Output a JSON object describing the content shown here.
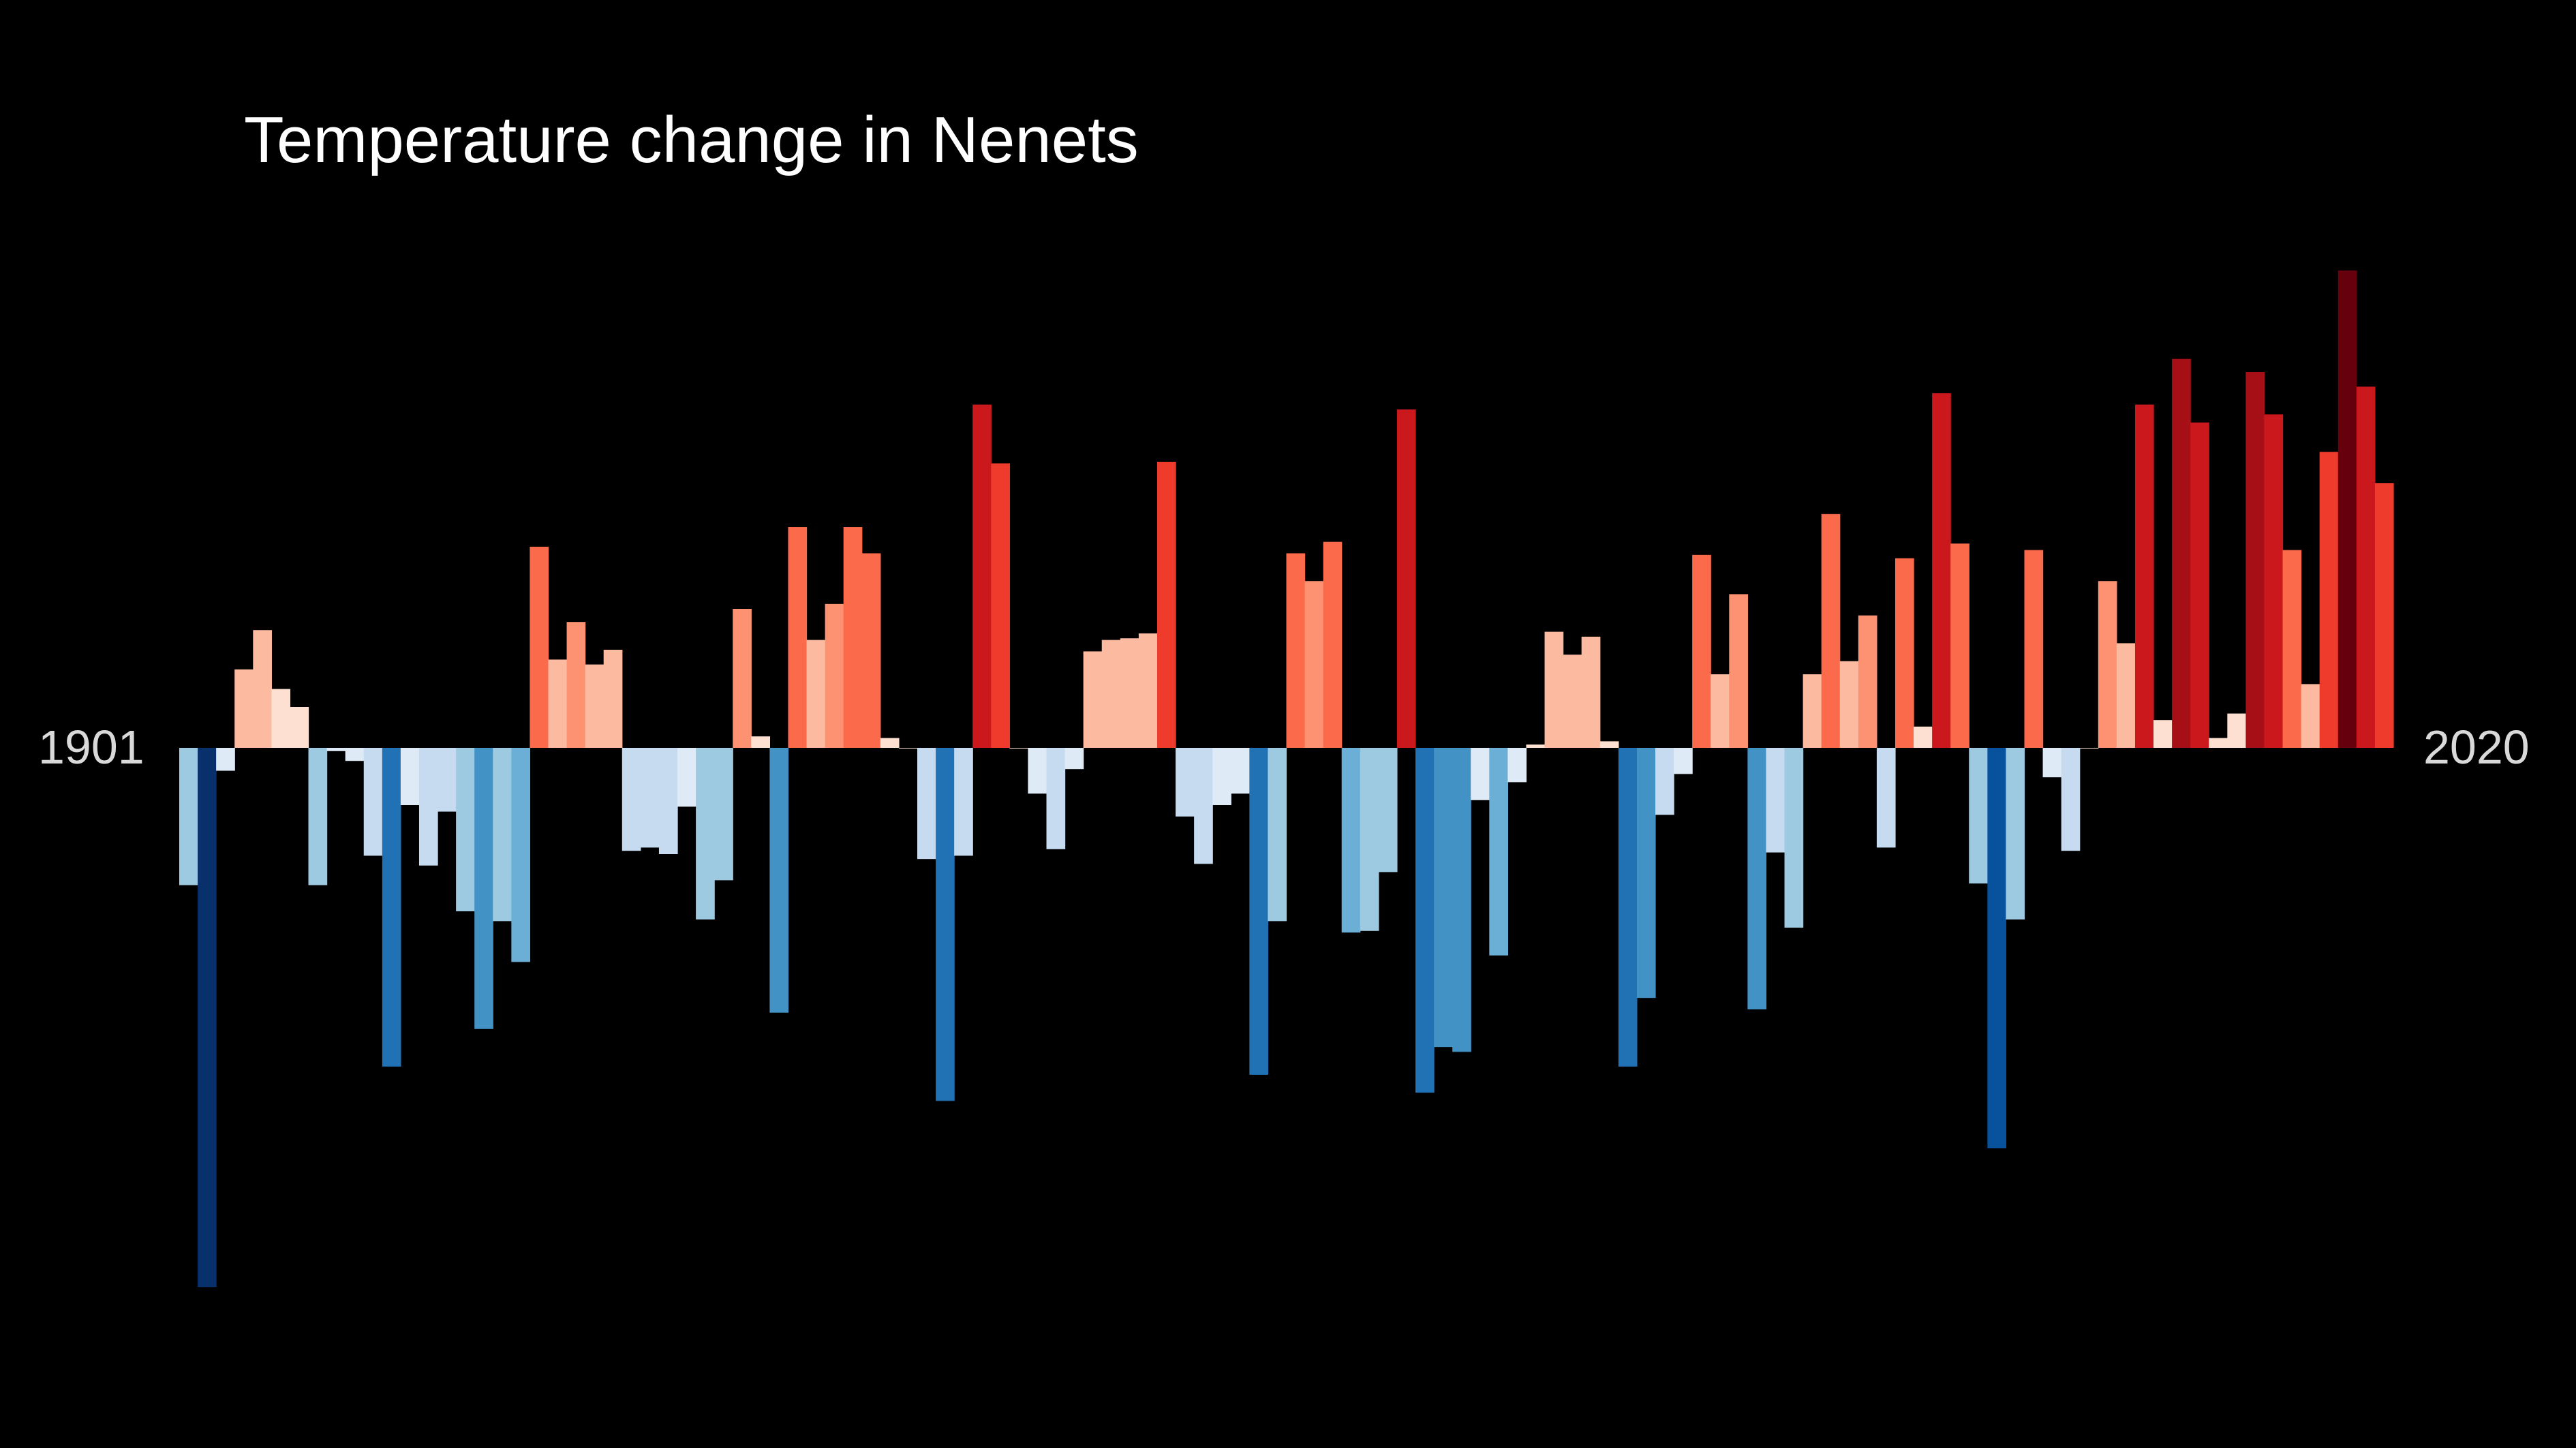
{
  "title": "Temperature change in Nenets",
  "start_label": "1901",
  "end_label": "2020",
  "chart_data": {
    "type": "bar",
    "title": "Temperature change in Nenets",
    "x": [
      1901,
      1902,
      1903,
      1904,
      1905,
      1906,
      1907,
      1908,
      1909,
      1910,
      1911,
      1912,
      1913,
      1914,
      1915,
      1916,
      1917,
      1918,
      1919,
      1920,
      1921,
      1922,
      1923,
      1924,
      1925,
      1926,
      1927,
      1928,
      1929,
      1930,
      1931,
      1932,
      1933,
      1934,
      1935,
      1936,
      1937,
      1938,
      1939,
      1940,
      1941,
      1942,
      1943,
      1944,
      1945,
      1946,
      1947,
      1948,
      1949,
      1950,
      1951,
      1952,
      1953,
      1954,
      1955,
      1956,
      1957,
      1958,
      1959,
      1960,
      1961,
      1962,
      1963,
      1964,
      1965,
      1966,
      1967,
      1968,
      1969,
      1970,
      1971,
      1972,
      1973,
      1974,
      1975,
      1976,
      1977,
      1978,
      1979,
      1980,
      1981,
      1982,
      1983,
      1984,
      1985,
      1986,
      1987,
      1988,
      1989,
      1990,
      1991,
      1992,
      1993,
      1994,
      1995,
      1996,
      1997,
      1998,
      1999,
      2000,
      2001,
      2002,
      2003,
      2004,
      2005,
      2006,
      2007,
      2008,
      2009,
      2010,
      2011,
      2012,
      2013,
      2014,
      2015,
      2016,
      2017,
      2018,
      2019,
      2020
    ],
    "values": [
      -0.84,
      -3.3,
      -0.14,
      0.48,
      0.72,
      0.36,
      0.25,
      -0.84,
      -0.02,
      -0.08,
      -0.66,
      -1.95,
      -0.35,
      -0.72,
      -0.39,
      -1.0,
      -1.72,
      -1.06,
      -1.31,
      1.23,
      0.54,
      0.77,
      0.51,
      0.6,
      -0.63,
      -0.61,
      -0.65,
      -0.36,
      -1.05,
      -0.81,
      0.85,
      0.07,
      -1.62,
      1.35,
      0.66,
      0.88,
      1.35,
      1.19,
      0.06,
      0.0,
      -0.68,
      -2.16,
      -0.66,
      2.1,
      1.74,
      0.0,
      -0.28,
      -0.62,
      -0.13,
      0.59,
      0.66,
      0.67,
      0.7,
      1.75,
      -0.42,
      -0.71,
      -0.35,
      -0.28,
      -2.0,
      -1.06,
      1.19,
      1.02,
      1.26,
      -1.13,
      -1.12,
      -0.76,
      2.07,
      -2.11,
      -1.83,
      -1.86,
      -0.32,
      -1.27,
      -0.21,
      0.02,
      0.71,
      0.57,
      0.68,
      0.04,
      -1.95,
      -1.53,
      -0.41,
      -0.16,
      1.18,
      0.45,
      0.94,
      -1.6,
      -0.64,
      -1.1,
      0.45,
      1.43,
      0.53,
      0.81,
      -0.61,
      1.16,
      0.13,
      2.17,
      1.25,
      -0.83,
      -2.45,
      -1.05,
      1.21,
      -0.18,
      -0.63,
      0.0,
      1.02,
      0.64,
      2.1,
      0.17,
      2.38,
      1.99,
      0.06,
      0.21,
      2.3,
      2.04,
      1.21,
      0.39,
      1.81,
      2.92,
      2.21,
      1.62
    ],
    "zero_line": 0
  },
  "colors": {
    "background": "#000000",
    "title": "#ffffff",
    "year_labels": "#d9d9d9",
    "palette": [
      "#08306b",
      "#08519c",
      "#2171b5",
      "#4292c6",
      "#6baed6",
      "#9ecae1",
      "#c6dbef",
      "#deebf7",
      "#fee0d2",
      "#fcbba1",
      "#fc9272",
      "#fb6a4a",
      "#ef3b2c",
      "#cb181d",
      "#a50f15",
      "#67000d"
    ]
  }
}
